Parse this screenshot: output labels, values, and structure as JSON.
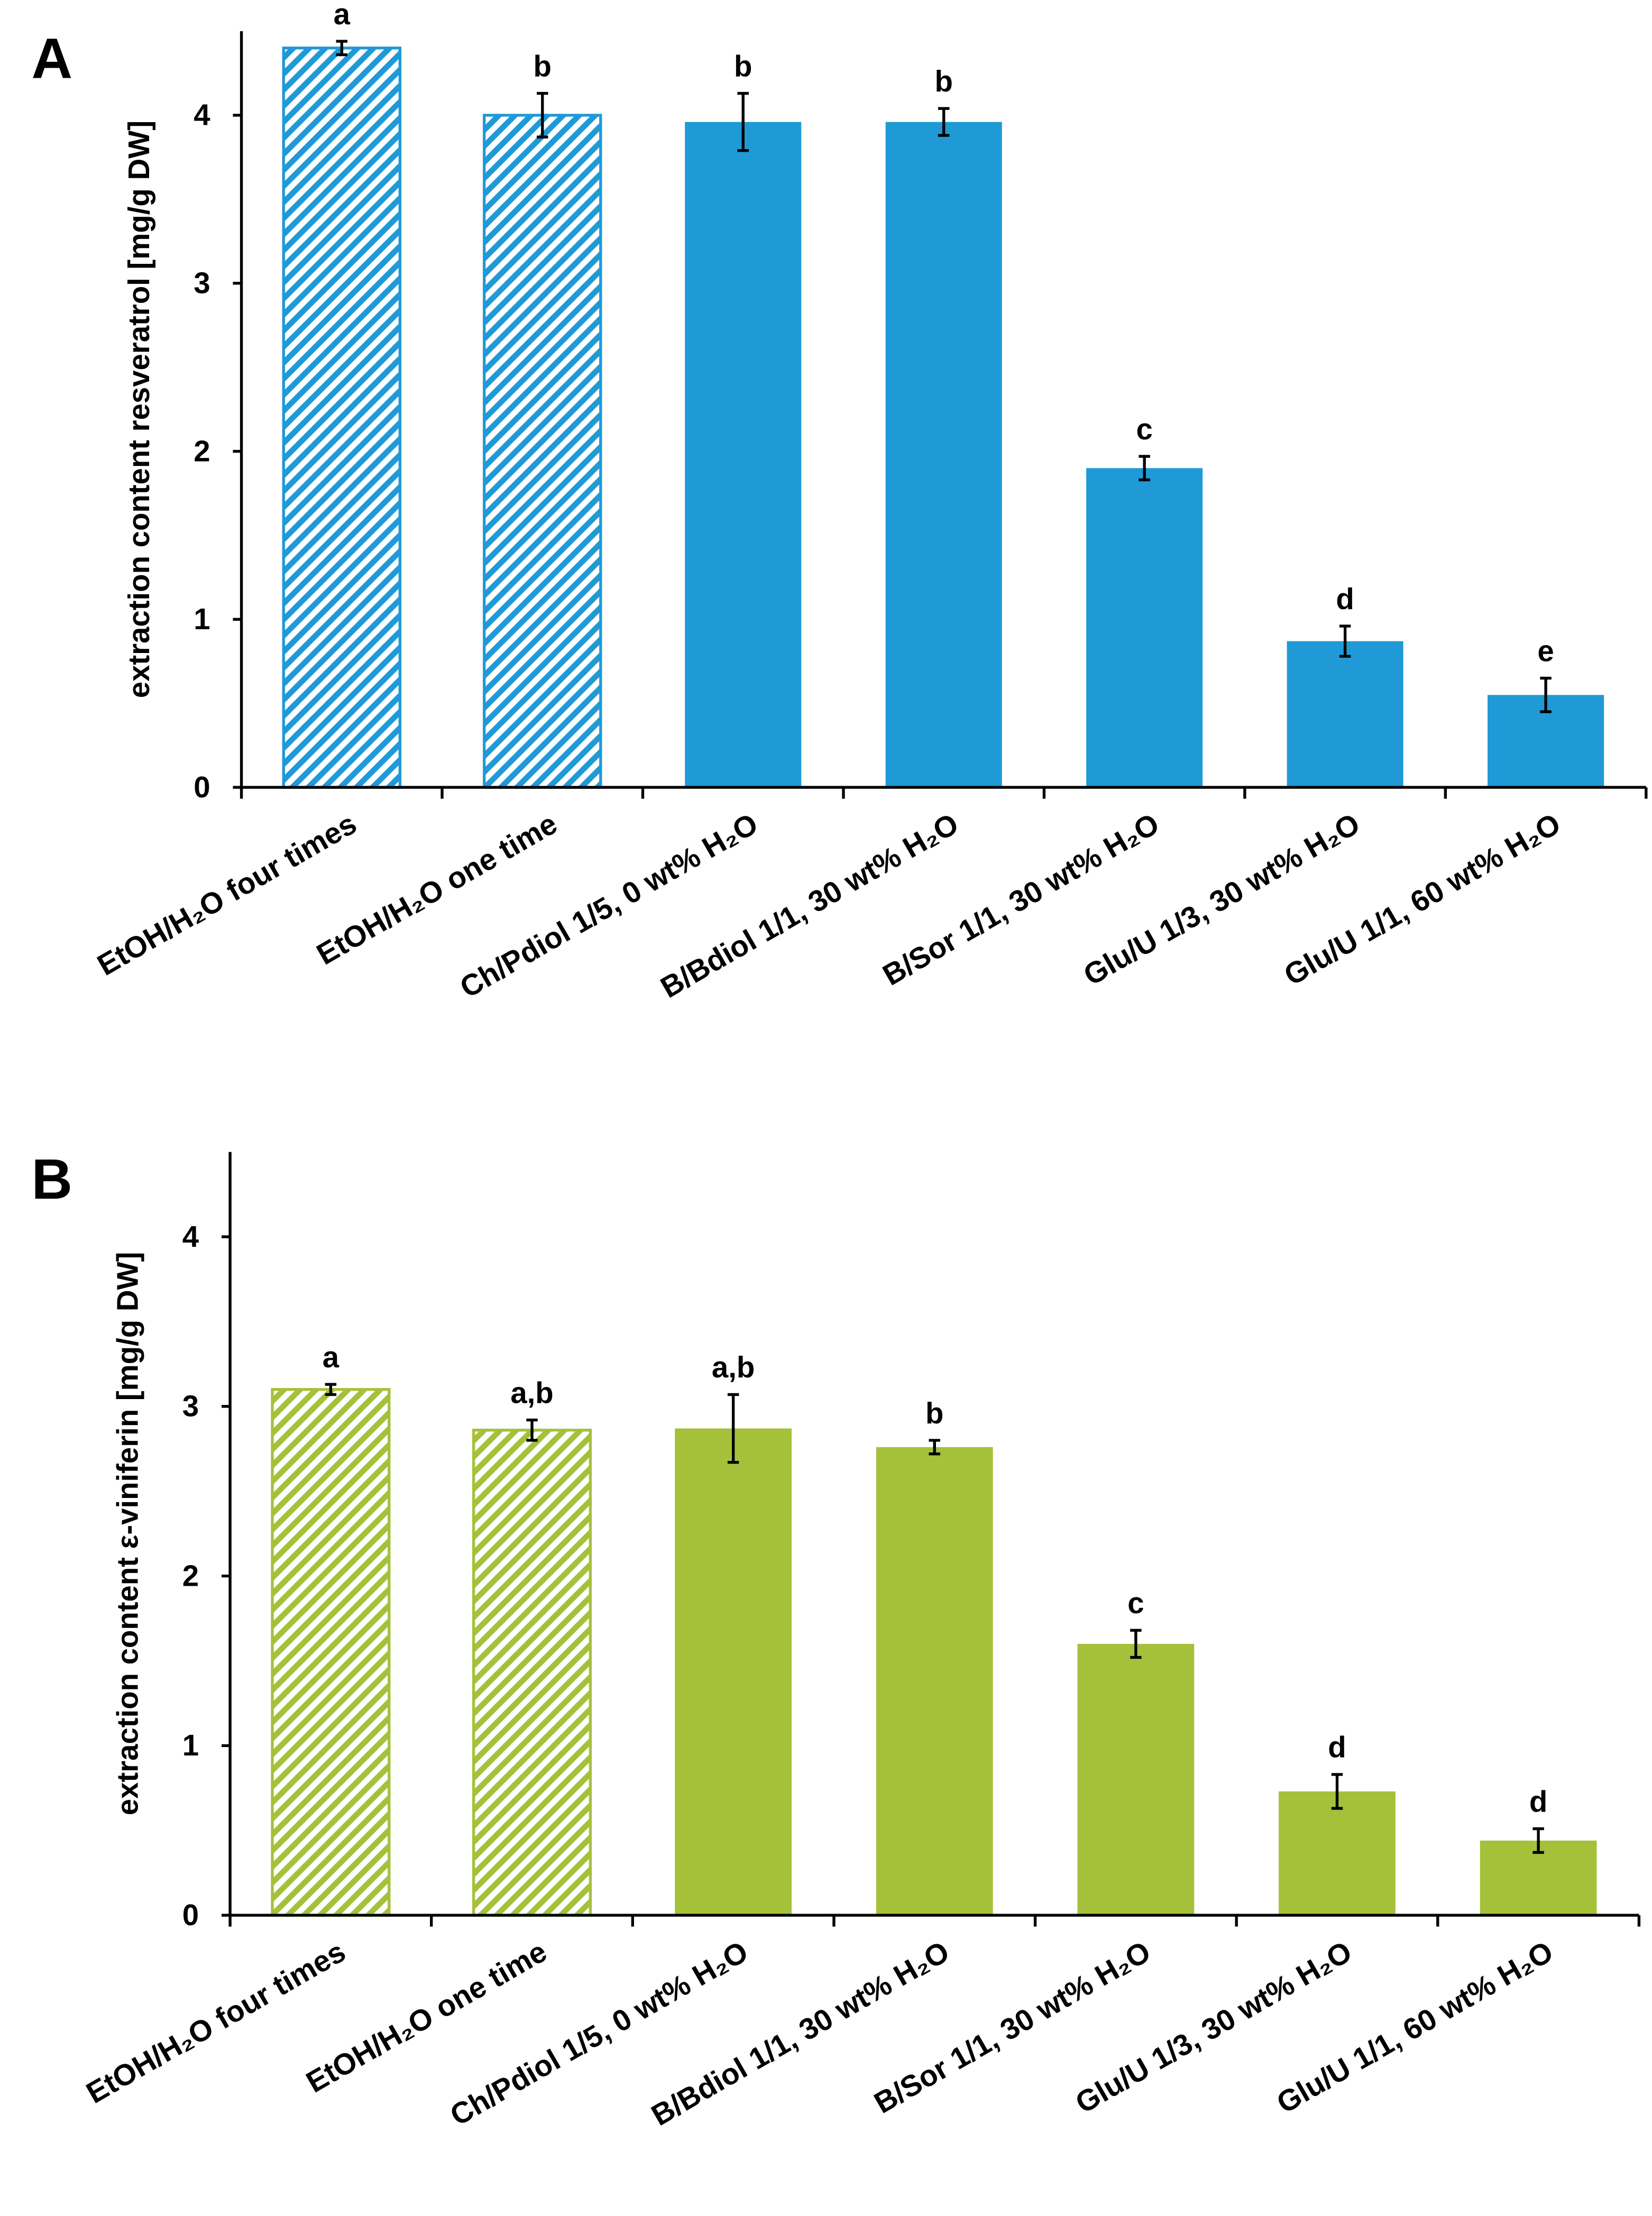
{
  "chart_data": [
    {
      "type": "bar",
      "panel_label": "A",
      "ylabel": "extraction content resveratrol [mg/g DW]",
      "categories": [
        "EtOH/H₂O four times",
        "EtOH/H₂O one time",
        "Ch/Pdiol 1/5, 0 wt% H₂O",
        "B/Bdiol 1/1, 30 wt% H₂O",
        "B/Sor 1/1, 30 wt% H₂O",
        "Glu/U 1/3, 30 wt% H₂O",
        "Glu/U 1/1, 60 wt% H₂O"
      ],
      "values": [
        4.4,
        4.0,
        3.96,
        3.96,
        1.9,
        0.87,
        0.55
      ],
      "errors": [
        0.04,
        0.13,
        0.17,
        0.08,
        0.07,
        0.09,
        0.1
      ],
      "annotations": [
        "a",
        "b",
        "b",
        "b",
        "c",
        "d",
        "e"
      ],
      "hatched": [
        true,
        true,
        false,
        false,
        false,
        false,
        false
      ],
      "color": "#1f9ad6",
      "ylim": [
        0,
        4.5
      ],
      "yticks": [
        0,
        1,
        2,
        3,
        4
      ]
    },
    {
      "type": "bar",
      "panel_label": "B",
      "ylabel": "extraction content ε-viniferin [mg/g DW]",
      "categories": [
        "EtOH/H₂O four times",
        "EtOH/H₂O one time",
        "Ch/Pdiol 1/5, 0 wt% H₂O",
        "B/Bdiol 1/1, 30 wt% H₂O",
        "B/Sor 1/1, 30 wt% H₂O",
        "Glu/U 1/3, 30 wt% H₂O",
        "Glu/U 1/1, 60 wt% H₂O"
      ],
      "values": [
        3.1,
        2.86,
        2.87,
        2.76,
        1.6,
        0.73,
        0.44
      ],
      "errors": [
        0.03,
        0.06,
        0.2,
        0.04,
        0.08,
        0.1,
        0.07
      ],
      "annotations": [
        "a",
        "a,b",
        "a,b",
        "b",
        "c",
        "d",
        "d"
      ],
      "hatched": [
        true,
        true,
        false,
        false,
        false,
        false,
        false
      ],
      "color": "#a5c13a",
      "ylim": [
        0,
        4.5
      ],
      "yticks": [
        0,
        1,
        2,
        3,
        4
      ]
    }
  ]
}
